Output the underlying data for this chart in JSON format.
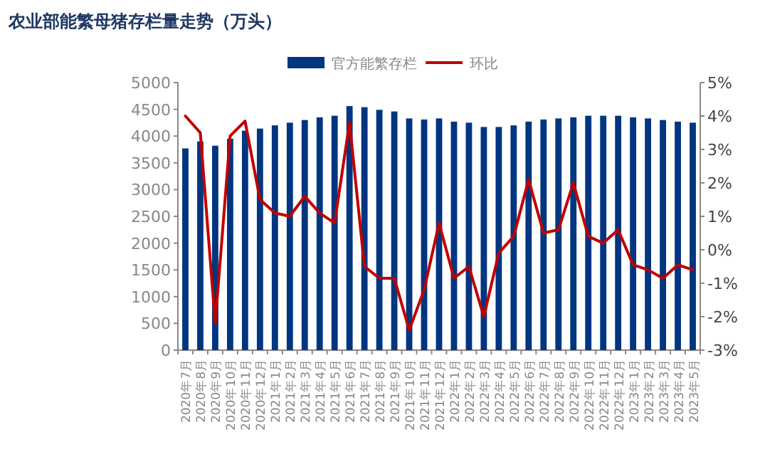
{
  "chart_data": {
    "type": "bar",
    "title": "农业部能繁母猪存栏量走势（万头）",
    "categories": [
      "2020年7月",
      "2020年8月",
      "2020年9月",
      "2020年10月",
      "2020年11月",
      "2020年12月",
      "2021年1月",
      "2021年2月",
      "2021年3月",
      "2021年4月",
      "2021年5月",
      "2021年6月",
      "2021年7月",
      "2021年8月",
      "2021年9月",
      "2021年10月",
      "2021年11月",
      "2021年12月",
      "2022年1月",
      "2022年2月",
      "2022年3月",
      "2022年4月",
      "2022年5月",
      "2022年6月",
      "2022年7月",
      "2022年8月",
      "2022年9月",
      "2022年10月",
      "2022年11月",
      "2022年12月",
      "2023年1月",
      "2023年2月",
      "2023年3月",
      "2023年4月",
      "2023年5月"
    ],
    "series": [
      {
        "name": "官方能繁存栏",
        "color": "#003580",
        "values": [
          3770,
          3900,
          3820,
          3950,
          4100,
          4140,
          4200,
          4250,
          4300,
          4350,
          4380,
          4560,
          4540,
          4490,
          4460,
          4330,
          4310,
          4330,
          4270,
          4250,
          4170,
          4170,
          4200,
          4270,
          4310,
          4330,
          4350,
          4380,
          4380,
          4380,
          4350,
          4330,
          4300,
          4270,
          4250
        ]
      },
      {
        "name": "环比",
        "type": "line",
        "axis": "y2",
        "color": "#c00000",
        "values": [
          4.0,
          3.5,
          -2.2,
          3.4,
          3.85,
          1.5,
          1.1,
          1.0,
          1.6,
          1.1,
          0.8,
          3.8,
          -0.5,
          -0.85,
          -0.85,
          -2.4,
          -1.2,
          0.8,
          -0.85,
          -0.5,
          -2.0,
          -0.1,
          0.4,
          2.1,
          0.5,
          0.6,
          2.0,
          0.4,
          0.2,
          0.6,
          -0.45,
          -0.6,
          -0.85,
          -0.45,
          -0.6
        ]
      }
    ],
    "ylim": [
      0,
      5000
    ],
    "yticks": [
      0,
      500,
      1000,
      1500,
      2000,
      2500,
      3000,
      3500,
      4000,
      4500,
      5000
    ],
    "y2lim": [
      -3,
      5
    ],
    "y2ticks": [
      {
        "value": -3,
        "label": "-3%"
      },
      {
        "value": -2,
        "label": "-2%"
      },
      {
        "value": -1,
        "label": "-1%"
      },
      {
        "value": 0,
        "label": "0%"
      },
      {
        "value": 1,
        "label": "1%"
      },
      {
        "value": 2,
        "label": "2%"
      },
      {
        "value": 3,
        "label": "3%"
      },
      {
        "value": 4,
        "label": "4%"
      },
      {
        "value": 5,
        "label": "5%"
      }
    ],
    "legend": "top",
    "grid": false,
    "marker": "none",
    "line_style": "solid"
  }
}
